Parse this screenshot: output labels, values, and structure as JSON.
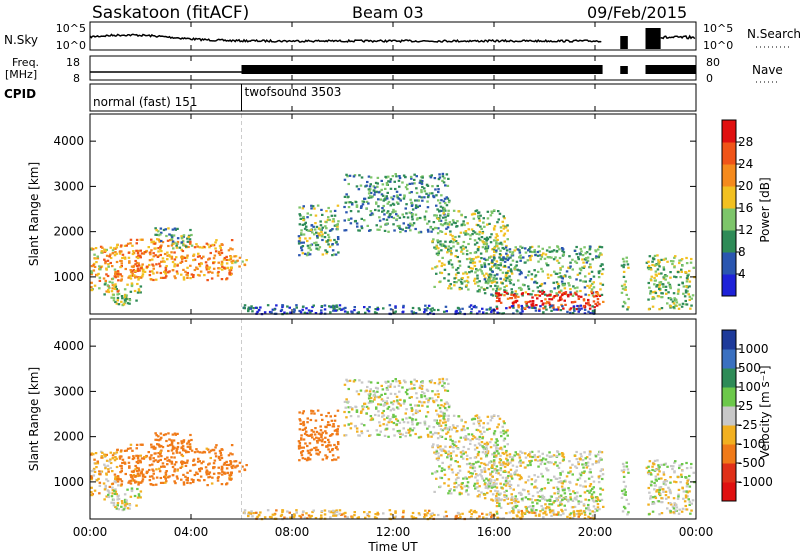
{
  "chart_data": {
    "type": "heatmap",
    "header": {
      "station": "Saskatoon (fitACF)",
      "beam": "Beam 03",
      "date": "09/Feb/2015"
    },
    "status_panels": {
      "nsky_label": "N.Sky",
      "nsky_ticks": [
        "10^5",
        "10^0"
      ],
      "nsearch_label": "N.Search",
      "freq_label_line1": "Freq.",
      "freq_label_line2": "[MHz]",
      "freq_ticks": [
        "18",
        "8"
      ],
      "nave_label": "Nave",
      "nave_ticks": [
        "80",
        "0"
      ],
      "cpid_label": "CPID",
      "modes": [
        {
          "name": "normal (fast) 151",
          "start_hour": 0,
          "end_hour": 6
        },
        {
          "name": "twofsound 3503",
          "start_hour": 6,
          "end_hour": 24
        }
      ]
    },
    "x_axis": {
      "label": "Time UT",
      "range_hours": [
        0,
        24
      ],
      "ticks": [
        "00:00",
        "04:00",
        "08:00",
        "12:00",
        "16:00",
        "20:00",
        "00:00"
      ]
    },
    "y_axis": {
      "label": "Slant Range [km]",
      "range_km": [
        180,
        4600
      ],
      "ticks": [
        "1000",
        "2000",
        "3000",
        "4000"
      ]
    },
    "power_panel": {
      "colorbar_label": "Power [dB]",
      "colorbar_ticks": [
        "4",
        "8",
        "12",
        "16",
        "20",
        "24",
        "28"
      ],
      "colors": [
        "#1e22d8",
        "#2a56b0",
        "#2e8b57",
        "#7dc56a",
        "#f2c020",
        "#f58a1c",
        "#f05418",
        "#e01010"
      ]
    },
    "velocity_panel": {
      "colorbar_label": "Velocity [m s⁻¹]",
      "colorbar_ticks": [
        "1000",
        "500",
        "100",
        "25",
        "-25",
        "-100",
        "-500",
        "-1000"
      ],
      "colors": [
        "#1e3a9a",
        "#3a70c0",
        "#2e8b57",
        "#6cc84a",
        "#c8c8c8",
        "#f2b020",
        "#f07a18",
        "#e03018",
        "#e01010"
      ]
    },
    "scatter_regions": [
      {
        "t0": 0.0,
        "t1": 1.2,
        "r0": 700,
        "r1": 1700,
        "p": 20,
        "v": -60
      },
      {
        "t0": 1.0,
        "t1": 5.6,
        "r0": 950,
        "r1": 1850,
        "p": 22,
        "v": -150
      },
      {
        "t0": 0.5,
        "t1": 2.0,
        "r0": 400,
        "r1": 900,
        "p": 14,
        "v": 0
      },
      {
        "t0": 2.5,
        "t1": 4.0,
        "r0": 1650,
        "r1": 2100,
        "p": 12,
        "v": -200
      },
      {
        "t0": 5.5,
        "t1": 6.2,
        "r0": 1200,
        "r1": 1500,
        "p": 18,
        "v": -200
      },
      {
        "t0": 8.2,
        "t1": 9.8,
        "r0": 1500,
        "r1": 2600,
        "p": 12,
        "v": -300
      },
      {
        "t0": 10.0,
        "t1": 14.2,
        "r0": 2000,
        "r1": 3300,
        "p": 10,
        "v": 0
      },
      {
        "t0": 13.5,
        "t1": 16.5,
        "r0": 700,
        "r1": 2500,
        "p": 14,
        "v": 0
      },
      {
        "t0": 15.5,
        "t1": 20.3,
        "r0": 600,
        "r1": 1700,
        "p": 12,
        "v": 0
      },
      {
        "t0": 16.0,
        "t1": 20.3,
        "r0": 300,
        "r1": 700,
        "p": 28,
        "v": 0
      },
      {
        "t0": 21.0,
        "t1": 21.3,
        "r0": 300,
        "r1": 1500,
        "p": 12,
        "v": 0
      },
      {
        "t0": 22.0,
        "t1": 23.9,
        "r0": 300,
        "r1": 1500,
        "p": 14,
        "v": 0
      },
      {
        "t0": 6.0,
        "t1": 20.0,
        "r0": 200,
        "r1": 400,
        "p": 6,
        "v": -60
      }
    ]
  }
}
